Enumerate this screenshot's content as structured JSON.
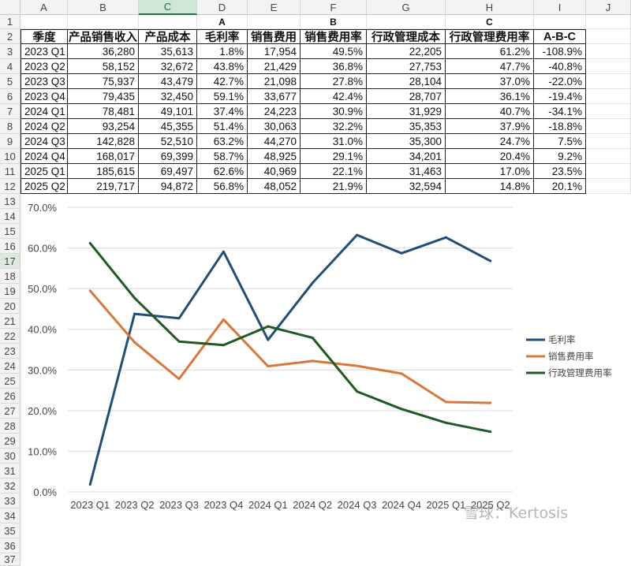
{
  "columns": [
    "A",
    "B",
    "C",
    "D",
    "E",
    "F",
    "G",
    "H",
    "I",
    "J"
  ],
  "selected_column": "C",
  "selected_row": "17",
  "rows": [
    "1",
    "2",
    "3",
    "4",
    "5",
    "6",
    "7",
    "8",
    "9",
    "10",
    "11",
    "12",
    "13",
    "14",
    "15",
    "16",
    "17",
    "18",
    "19",
    "20",
    "21",
    "22",
    "23",
    "24",
    "25",
    "26",
    "27",
    "28",
    "29",
    "30",
    "31",
    "32",
    "33",
    "34",
    "35",
    "36",
    "37"
  ],
  "labels": {
    "D": "A",
    "F": "B",
    "H": "C"
  },
  "table": {
    "headers": [
      "季度",
      "产品销售收入",
      "产品成本",
      "毛利率",
      "销售费用",
      "销售费用率",
      "行政管理成本",
      "行政管理费用率",
      "A-B-C"
    ],
    "rows": [
      [
        "2023 Q1",
        "36,280",
        "35,613",
        "1.8%",
        "17,954",
        "49.5%",
        "22,205",
        "61.2%",
        "-108.9%"
      ],
      [
        "2023 Q2",
        "58,152",
        "32,672",
        "43.8%",
        "21,429",
        "36.8%",
        "27,753",
        "47.7%",
        "-40.8%"
      ],
      [
        "2023 Q3",
        "75,937",
        "43,479",
        "42.7%",
        "21,098",
        "27.8%",
        "28,104",
        "37.0%",
        "-22.0%"
      ],
      [
        "2023 Q4",
        "79,435",
        "32,450",
        "59.1%",
        "33,677",
        "42.4%",
        "28,707",
        "36.1%",
        "-19.4%"
      ],
      [
        "2024 Q1",
        "78,481",
        "49,101",
        "37.4%",
        "24,223",
        "30.9%",
        "31,929",
        "40.7%",
        "-34.1%"
      ],
      [
        "2024 Q2",
        "93,254",
        "45,355",
        "51.4%",
        "30,063",
        "32.2%",
        "35,353",
        "37.9%",
        "-18.8%"
      ],
      [
        "2024 Q3",
        "142,828",
        "52,510",
        "63.2%",
        "44,270",
        "31.0%",
        "35,300",
        "24.7%",
        "7.5%"
      ],
      [
        "2024 Q4",
        "168,017",
        "69,399",
        "58.7%",
        "48,925",
        "29.1%",
        "34,201",
        "20.4%",
        "9.2%"
      ],
      [
        "2025 Q1",
        "185,615",
        "69,497",
        "62.6%",
        "40,969",
        "22.1%",
        "31,463",
        "17.0%",
        "23.5%"
      ],
      [
        "2025 Q2",
        "219,717",
        "94,872",
        "56.8%",
        "48,052",
        "21.9%",
        "32,594",
        "14.8%",
        "20.1%"
      ]
    ]
  },
  "chart_data": {
    "type": "line",
    "categories": [
      "2023 Q1",
      "2023 Q2",
      "2023 Q3",
      "2023 Q4",
      "2024 Q1",
      "2024 Q2",
      "2024 Q3",
      "2024 Q4",
      "2025 Q1",
      "2025 Q2"
    ],
    "y_ticks": [
      "0.0%",
      "10.0%",
      "20.0%",
      "30.0%",
      "40.0%",
      "50.0%",
      "60.0%",
      "70.0%"
    ],
    "ylim": [
      0,
      70
    ],
    "grid": true,
    "legend_position": "right",
    "series": [
      {
        "name": "毛利率",
        "color": "#1f4e79",
        "values": [
          1.8,
          43.8,
          42.7,
          59.1,
          37.4,
          51.4,
          63.2,
          58.7,
          62.6,
          56.8
        ]
      },
      {
        "name": "销售费用率",
        "color": "#d9773a",
        "values": [
          49.5,
          36.8,
          27.8,
          42.4,
          30.9,
          32.2,
          31.0,
          29.1,
          22.1,
          21.9
        ]
      },
      {
        "name": "行政管理费用率",
        "color": "#1e5a22",
        "values": [
          61.2,
          47.7,
          37.0,
          36.1,
          40.7,
          37.9,
          24.7,
          20.4,
          17.0,
          14.8
        ]
      }
    ]
  },
  "watermark": "雪球：Kertosis",
  "colors": {
    "header_bg": "#f3f3f3",
    "selected_col_bg": "#cfe8d6",
    "accent": "#217346"
  }
}
